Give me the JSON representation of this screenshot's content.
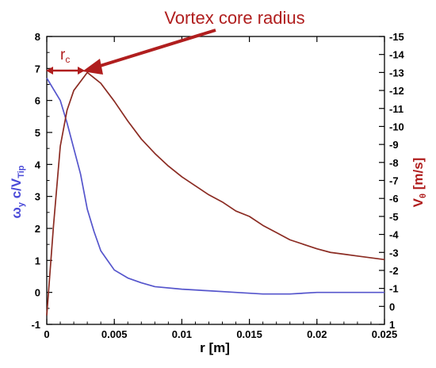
{
  "chart_data": {
    "type": "line",
    "annotation": "Vortex core radius",
    "rc_label": {
      "main": "r",
      "sub": "c"
    },
    "xlabel": "r [m]",
    "xlim": [
      0,
      0.025
    ],
    "x_ticks": [
      "0",
      "0.005",
      "0.01",
      "0.015",
      "0.02",
      "0.025"
    ],
    "ylabel_left": {
      "omega": "ω",
      "omega_sub": "y",
      "mid": " c/V",
      "tip_sub": "Tip"
    },
    "ylim_left": [
      -1,
      8
    ],
    "y_left_ticks": [
      "-1",
      "0",
      "1",
      "2",
      "3",
      "4",
      "5",
      "6",
      "7",
      "8"
    ],
    "ylabel_right": {
      "main": "V",
      "sub": "θ",
      "unit": " [m/s]"
    },
    "ylim_right": [
      1,
      -15
    ],
    "y_right_ticks": [
      "1",
      "0",
      "-1",
      "-2",
      "-3",
      "-4",
      "-5",
      "-6",
      "-7",
      "-8",
      "-9",
      "-10",
      "-11",
      "-12",
      "-13",
      "-14",
      "-15"
    ],
    "colors": {
      "vorticity": "#5555cc",
      "velocity": "#8b2b22",
      "annotation": "#b01e1e"
    },
    "series": [
      {
        "axis": "left",
        "x": [
          0,
          0.001,
          0.0015,
          0.002,
          0.0025,
          0.003,
          0.0035,
          0.004,
          0.0045,
          0.005,
          0.006,
          0.007,
          0.008,
          0.01,
          0.012,
          0.014,
          0.016,
          0.018,
          0.02,
          0.022,
          0.025
        ],
        "values": [
          6.7,
          6.0,
          5.3,
          4.5,
          3.7,
          2.6,
          1.9,
          1.3,
          1.0,
          0.7,
          0.45,
          0.3,
          0.18,
          0.1,
          0.05,
          0.0,
          -0.05,
          -0.05,
          0.0,
          0.0,
          0.0
        ]
      },
      {
        "axis": "right",
        "x": [
          0,
          0.0005,
          0.001,
          0.0015,
          0.002,
          0.0025,
          0.003,
          0.0035,
          0.004,
          0.005,
          0.006,
          0.007,
          0.008,
          0.009,
          0.01,
          0.011,
          0.012,
          0.013,
          0.014,
          0.015,
          0.016,
          0.017,
          0.018,
          0.019,
          0.02,
          0.021,
          0.022,
          0.023,
          0.024,
          0.025
        ],
        "values": [
          0.5,
          -4.5,
          -8.9,
          -10.9,
          -12.0,
          -12.5,
          -13.0,
          -12.7,
          -12.4,
          -11.4,
          -10.3,
          -9.3,
          -8.5,
          -7.8,
          -7.2,
          -6.7,
          -6.2,
          -5.8,
          -5.3,
          -5.0,
          -4.5,
          -4.1,
          -3.7,
          -3.45,
          -3.2,
          -3.0,
          -2.9,
          -2.8,
          -2.7,
          -2.6
        ]
      }
    ]
  }
}
